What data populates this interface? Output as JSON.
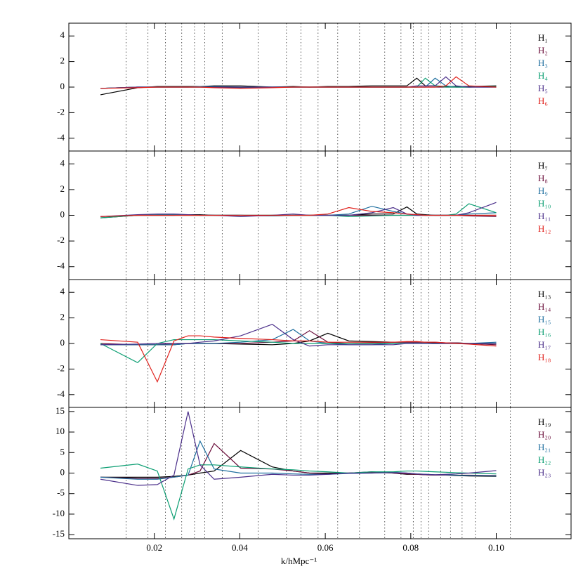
{
  "chart_data": [
    {
      "type": "line",
      "ylim": [
        -5,
        5
      ],
      "yticks": [
        -4,
        -2,
        0,
        2,
        4
      ],
      "series": [
        {
          "name": "H₁",
          "color": "#000000",
          "values": [
            -0.6,
            -0.05,
            0.05,
            0.05,
            0.05,
            0.05,
            0.1,
            0.1,
            0,
            0.05,
            0,
            0.05,
            0.05,
            0.1,
            0.1,
            0.1,
            0.7,
            0.1,
            0.1,
            0.05,
            0.05,
            0.05,
            0.1
          ]
        },
        {
          "name": "H₂",
          "color": "#6a0d3a",
          "values": [
            -0.1,
            0,
            0,
            0,
            0,
            0,
            0,
            -0.05,
            0,
            0,
            0,
            0,
            0,
            0,
            0,
            0,
            0,
            0,
            0,
            0,
            0,
            0,
            0
          ]
        },
        {
          "name": "H₃",
          "color": "#1f6f9f",
          "values": [
            -0.1,
            0,
            0,
            0,
            0,
            0.05,
            0.05,
            0,
            0,
            0,
            0,
            0,
            0,
            0,
            0,
            0,
            0,
            0,
            0.7,
            0.1,
            0,
            0,
            0.05
          ]
        },
        {
          "name": "H₄",
          "color": "#0b9e72",
          "values": [
            -0.1,
            0,
            0,
            0,
            0,
            0,
            0,
            0,
            0,
            0,
            0,
            0,
            0,
            0,
            0,
            0,
            0,
            0.7,
            0.1,
            0,
            0,
            0,
            0.05
          ]
        },
        {
          "name": "H₅",
          "color": "#4b2f8a",
          "values": [
            -0.1,
            0,
            0,
            0,
            0,
            0,
            0,
            0,
            0,
            0,
            0,
            0,
            0,
            0,
            0,
            0,
            0.1,
            0.1,
            0.1,
            0.8,
            0.1,
            0,
            0
          ]
        },
        {
          "name": "H₆",
          "color": "#e0201b",
          "values": [
            -0.1,
            -0.05,
            0,
            0,
            0,
            0,
            -0.05,
            -0.1,
            -0.05,
            0,
            0,
            0,
            0,
            0,
            0,
            0,
            0,
            0,
            0,
            0.1,
            0.8,
            0.1,
            0
          ]
        }
      ]
    },
    {
      "type": "line",
      "ylim": [
        -5,
        5
      ],
      "yticks": [
        -4,
        -2,
        0,
        2,
        4
      ],
      "series": [
        {
          "name": "H₇",
          "color": "#000000",
          "values": [
            -0.2,
            0,
            0,
            0,
            0.05,
            0.05,
            0,
            0,
            0,
            0,
            0,
            0,
            0,
            0.1,
            0.1,
            0.65,
            0.1,
            0.05,
            0,
            0,
            0,
            0,
            0
          ]
        },
        {
          "name": "H₈",
          "color": "#6a0d3a",
          "values": [
            -0.1,
            0,
            0,
            0,
            0,
            0,
            0,
            0,
            -0.05,
            0,
            0,
            0,
            0,
            0,
            0,
            0,
            0,
            0,
            0,
            0,
            0,
            -0.05,
            -0.1
          ]
        },
        {
          "name": "H₉",
          "color": "#1f6f9f",
          "values": [
            -0.1,
            0,
            0.05,
            0.05,
            0.05,
            0,
            0,
            0,
            -0.05,
            0,
            0,
            0,
            0.1,
            0.7,
            0.3,
            0.1,
            0.05,
            0,
            0,
            0,
            0,
            0.1,
            0.2
          ]
        },
        {
          "name": "H₁₀",
          "color": "#0b9e72",
          "values": [
            -0.2,
            0,
            0,
            0,
            0,
            0,
            0,
            0,
            0,
            0,
            0,
            0,
            -0.1,
            -0.05,
            0,
            0,
            0,
            0,
            0,
            0,
            0.1,
            0.9,
            0.2
          ]
        },
        {
          "name": "H₁₁",
          "color": "#4b2f8a",
          "values": [
            -0.1,
            0.05,
            0.1,
            0.1,
            0.05,
            0,
            0,
            -0.1,
            0,
            0.1,
            0,
            0,
            0,
            0.2,
            0.6,
            0.1,
            0,
            0,
            0,
            0,
            0,
            0.2,
            1.0
          ]
        },
        {
          "name": "H₁₂",
          "color": "#e0201b",
          "values": [
            -0.1,
            0,
            0,
            0,
            0,
            0,
            0,
            0,
            0,
            0,
            0,
            0.1,
            0.6,
            0.3,
            0.2,
            0.1,
            0.05,
            0,
            0,
            0,
            0,
            0,
            0
          ]
        }
      ]
    },
    {
      "type": "line",
      "ylim": [
        -5,
        5
      ],
      "yticks": [
        -4,
        -2,
        0,
        2,
        4
      ],
      "series": [
        {
          "name": "H₁₃",
          "color": "#000000",
          "values": [
            -0.1,
            -0.1,
            -0.1,
            -0.1,
            0,
            0,
            0,
            -0.05,
            -0.1,
            0,
            0.2,
            0.8,
            0.2,
            0.15,
            0.1,
            0.1,
            0.1,
            0.1,
            0.05,
            0.05,
            0.05,
            0,
            0
          ]
        },
        {
          "name": "H₁₄",
          "color": "#6a0d3a",
          "values": [
            0,
            -0.1,
            -0.1,
            0,
            0,
            0,
            0,
            0,
            0.1,
            0.2,
            1.0,
            0.1,
            0,
            0.05,
            0.1,
            0.1,
            0.1,
            0.1,
            0.1,
            0.05,
            0.05,
            0,
            -0.1
          ]
        },
        {
          "name": "H₁₅",
          "color": "#1f6f9f",
          "values": [
            -0.1,
            -0.1,
            -0.1,
            -0.1,
            0,
            0,
            0,
            0.1,
            0.3,
            1.1,
            0.2,
            0,
            -0.1,
            -0.1,
            0,
            0,
            0,
            0,
            0,
            0,
            0,
            0,
            0.1
          ]
        },
        {
          "name": "H₁₆",
          "color": "#0b9e72",
          "values": [
            0,
            -1.5,
            0,
            0.3,
            0.3,
            0.3,
            0.3,
            0.2,
            0.1,
            0,
            0,
            0,
            0,
            0,
            0,
            0,
            0,
            0,
            0,
            0,
            0,
            0,
            0
          ]
        },
        {
          "name": "H₁₇",
          "color": "#4b2f8a",
          "values": [
            -0.1,
            -0.05,
            0,
            0,
            0,
            0.1,
            0.2,
            0.6,
            1.5,
            0.3,
            -0.2,
            -0.1,
            -0.1,
            -0.1,
            -0.1,
            0,
            0,
            0,
            0,
            0,
            0,
            0,
            0
          ]
        },
        {
          "name": "H₁₈",
          "color": "#e0201b",
          "values": [
            0.3,
            0.1,
            -3,
            0.2,
            0.6,
            0.6,
            0.5,
            0.4,
            0.3,
            0.2,
            0.2,
            0.1,
            0.1,
            0.1,
            0.1,
            0.15,
            0.15,
            0.1,
            0.1,
            0.05,
            0,
            -0.05,
            -0.2
          ]
        }
      ]
    },
    {
      "type": "line",
      "ylim": [
        -16,
        16
      ],
      "yticks": [
        -15,
        -10,
        -5,
        0,
        5,
        10,
        15
      ],
      "xlim": [
        0,
        0.1175
      ],
      "xticks": [
        0.02,
        0.04,
        0.06,
        0.08,
        {
          "value": 0.1,
          "label": "0.10"
        }
      ],
      "x_label": "k/hMpc⁻¹",
      "vlines": [
        0.0134,
        0.0185,
        0.0226,
        0.0264,
        0.0294,
        0.0318,
        0.0359,
        0.0443,
        0.0509,
        0.0543,
        0.0583,
        0.0629,
        0.068,
        0.0739,
        0.0777,
        0.0806,
        0.0824,
        0.0842,
        0.087,
        0.0893,
        0.092,
        0.0951,
        0.1033
      ],
      "x": [
        0.0074,
        0.0161,
        0.0207,
        0.0246,
        0.0279,
        0.0307,
        0.034,
        0.0402,
        0.0476,
        0.0525,
        0.0563,
        0.0606,
        0.0655,
        0.0709,
        0.0759,
        0.0791,
        0.0814,
        0.0834,
        0.0857,
        0.0882,
        0.0906,
        0.0936,
        0.1
      ],
      "series": [
        {
          "name": "H₁₉",
          "color": "#000000",
          "values": [
            -1,
            -1,
            -1,
            -0.8,
            -0.5,
            0,
            0.5,
            5.5,
            1.5,
            0.5,
            0,
            0,
            0,
            0.3,
            0,
            -0.3,
            -0.3,
            -0.4,
            -0.5,
            -0.5,
            -0.6,
            -0.7,
            -0.8
          ]
        },
        {
          "name": "H₂₀",
          "color": "#6a0d3a",
          "values": [
            -1,
            -1.3,
            -1.3,
            -1,
            -0.5,
            0.5,
            7.2,
            1.2,
            1,
            0.5,
            0,
            -0.2,
            0,
            0.2,
            0,
            -0.2,
            -0.3,
            -0.4,
            -0.5,
            -0.5,
            -0.5,
            -0.5,
            -0.6
          ]
        },
        {
          "name": "H₂₁",
          "color": "#1f6f9f",
          "values": [
            -1,
            -1.5,
            -1.5,
            -1,
            -0.5,
            7.8,
            1,
            0,
            0,
            -0.2,
            -0.3,
            -0.3,
            -0.1,
            0,
            0.2,
            0,
            -0.2,
            -0.3,
            -0.4,
            -0.4,
            -0.5,
            -0.6,
            -0.7
          ]
        },
        {
          "name": "H₂₂",
          "color": "#0b9e72",
          "values": [
            1.2,
            2.2,
            0.5,
            -11.2,
            1,
            2,
            2,
            1.5,
            1,
            0.8,
            0.5,
            0.3,
            0,
            0.3,
            0.3,
            0.5,
            0.5,
            0.4,
            0.3,
            0.2,
            0.1,
            0,
            -0.2
          ]
        },
        {
          "name": "H₂₃",
          "color": "#4b2f8a",
          "values": [
            -1.5,
            -3,
            -2.8,
            -0.5,
            15,
            2,
            -1.5,
            -1,
            -0.3,
            -0.5,
            -0.5,
            -0.3,
            0,
            0,
            0.1,
            0,
            -0.2,
            -0.3,
            -0.4,
            -0.3,
            -0.2,
            0,
            0.6
          ]
        }
      ]
    }
  ]
}
